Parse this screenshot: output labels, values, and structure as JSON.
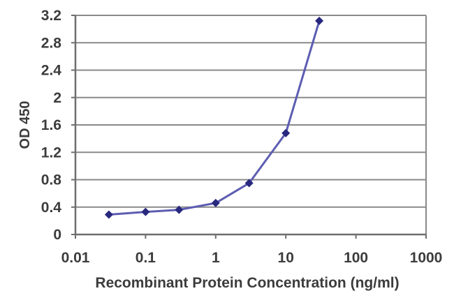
{
  "chart_data": {
    "type": "line",
    "title": "",
    "xlabel": "Recombinant Protein Concentration (ng/ml)",
    "ylabel": "OD 450",
    "x_scale": "log10",
    "xlim": [
      0.01,
      1000
    ],
    "ylim": [
      0,
      3.2
    ],
    "x_ticks": [
      "0.01",
      "0.1",
      "1",
      "10",
      "100",
      "1000"
    ],
    "y_ticks": [
      "0",
      "0.4",
      "0.8",
      "1.2",
      "1.6",
      "2",
      "2.4",
      "2.8",
      "3.2"
    ],
    "x": [
      0.03,
      0.1,
      0.3,
      1,
      3,
      10,
      30
    ],
    "values": [
      0.29,
      0.33,
      0.36,
      0.46,
      0.75,
      1.48,
      3.12
    ],
    "grid": "horizontal",
    "legend": "none",
    "marker_shape": "diamond",
    "colors": {
      "line": "#5d5db2",
      "marker": "#28287e",
      "gridline": "#8a8a8a",
      "axis": "#6e6e6e",
      "text": "#3c3c3c",
      "background": "#ffffff"
    }
  }
}
